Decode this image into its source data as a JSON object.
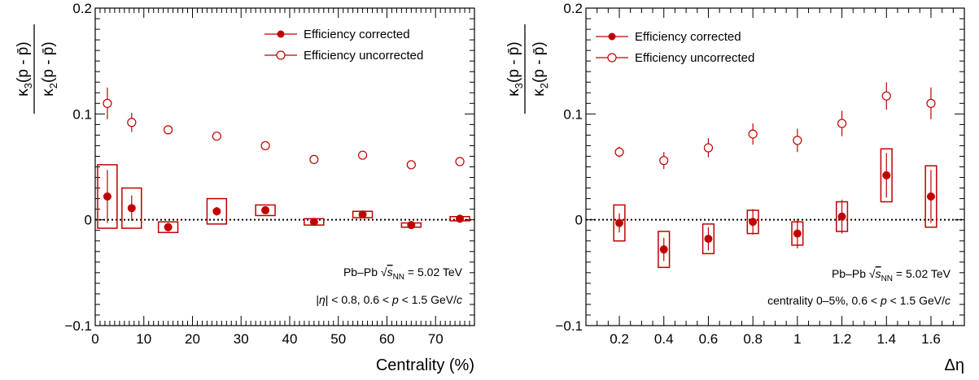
{
  "chart_data": [
    {
      "type": "scatter",
      "xlabel": "Centrality (%)",
      "ylabel": "κ3(p - p̄) / κ2(p - p̄)",
      "ylim": [
        -0.1,
        0.2
      ],
      "xlim": [
        0,
        78
      ],
      "xticks": [
        0,
        10,
        20,
        30,
        40,
        50,
        60,
        70
      ],
      "yticks": [
        -0.1,
        0,
        0.1,
        0.2
      ],
      "y_tick_labels": [
        "−0.1",
        "0",
        "0.1",
        "0.2"
      ],
      "grid": false,
      "reference_line": 0,
      "legend_position": "top-right",
      "annotations": [
        "Pb–Pb √sNN = 5.02 TeV",
        "|η| < 0.8, 0.6 < p < 1.5 GeV/c"
      ],
      "x": [
        2.5,
        7.5,
        15,
        25,
        35,
        45,
        55,
        65,
        75
      ],
      "series": [
        {
          "name": "Efficiency corrected",
          "marker": "filled-circle",
          "color": "#c00000",
          "values": [
            0.022,
            0.011,
            -0.007,
            0.008,
            0.009,
            -0.002,
            0.005,
            -0.005,
            0.001
          ],
          "stat_err": [
            0.025,
            0.012,
            0.004,
            0.004,
            0.003,
            0.002,
            0.002,
            0.001,
            0.001
          ],
          "sys_err": [
            0.03,
            0.019,
            0.005,
            0.012,
            0.005,
            0.003,
            0.003,
            0.002,
            0.002
          ],
          "box_halfwidth": 2
        },
        {
          "name": "Efficiency uncorrected",
          "marker": "open-circle",
          "color": "#c00000",
          "values": [
            0.11,
            0.092,
            0.085,
            0.079,
            0.07,
            0.057,
            0.061,
            0.052,
            0.055
          ],
          "stat_err": [
            0.015,
            0.009,
            0.004,
            0.003,
            0.002,
            0.002,
            0.002,
            0.001,
            0.001
          ]
        }
      ]
    },
    {
      "type": "scatter",
      "xlabel": "Δη",
      "ylabel": "κ3(p - p̄) / κ2(p - p̄)",
      "ylim": [
        -0.1,
        0.2
      ],
      "xlim": [
        0.05,
        1.75
      ],
      "xticks": [
        0.2,
        0.4,
        0.6,
        0.8,
        1,
        1.2,
        1.4,
        1.6
      ],
      "yticks": [
        -0.1,
        0,
        0.1,
        0.2
      ],
      "y_tick_labels": [
        "−0.1",
        "0",
        "0.1",
        "0.2"
      ],
      "grid": false,
      "reference_line": 0,
      "legend_position": "top-left",
      "annotations": [
        "Pb–Pb √sNN = 5.02 TeV",
        "centrality 0–5%, 0.6 < p < 1.5 GeV/c"
      ],
      "x": [
        0.2,
        0.4,
        0.6,
        0.8,
        1.0,
        1.2,
        1.4,
        1.6
      ],
      "series": [
        {
          "name": "Efficiency corrected",
          "marker": "filled-circle",
          "color": "#c00000",
          "values": [
            -0.003,
            -0.028,
            -0.018,
            -0.002,
            -0.013,
            0.003,
            0.042,
            0.022
          ],
          "stat_err": [
            0.009,
            0.011,
            0.011,
            0.012,
            0.014,
            0.016,
            0.021,
            0.025
          ],
          "sys_err": [
            0.017,
            0.017,
            0.014,
            0.011,
            0.011,
            0.014,
            0.025,
            0.029
          ],
          "box_halfwidth": 0.025
        },
        {
          "name": "Efficiency uncorrected",
          "marker": "open-circle",
          "color": "#c00000",
          "values": [
            0.064,
            0.056,
            0.068,
            0.081,
            0.075,
            0.091,
            0.117,
            0.11
          ],
          "stat_err": [
            0.005,
            0.008,
            0.009,
            0.01,
            0.011,
            0.012,
            0.013,
            0.015
          ]
        }
      ]
    }
  ]
}
